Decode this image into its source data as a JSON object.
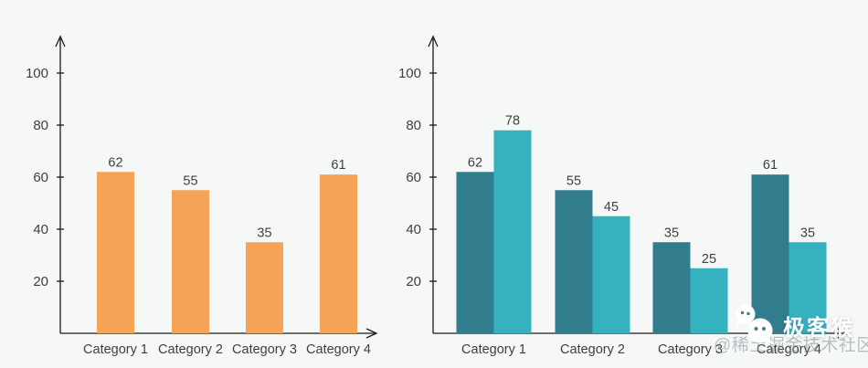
{
  "page": {
    "background_color": "#F6F8F8",
    "axis_color": "#1A1A1A",
    "text_color": "#3F3F3F"
  },
  "chart_data": [
    {
      "type": "bar",
      "title": "",
      "xlabel": "",
      "ylabel": "",
      "categories": [
        "Category 1",
        "Category 2",
        "Category 3",
        "Category 4"
      ],
      "series": [
        {
          "values": [
            62,
            55,
            35,
            61
          ]
        }
      ],
      "colors": [
        "#F5A356"
      ],
      "yticks": [
        20,
        40,
        60,
        80,
        100
      ],
      "ylim": [
        0,
        110
      ],
      "grid": false,
      "legend": false,
      "data_labels": true
    },
    {
      "type": "bar",
      "title": "",
      "xlabel": "",
      "ylabel": "",
      "categories": [
        "Category 1",
        "Category 2",
        "Category 3",
        "Category 4"
      ],
      "series": [
        {
          "values": [
            62,
            55,
            35,
            61
          ]
        },
        {
          "values": [
            78,
            45,
            25,
            35
          ]
        }
      ],
      "colors": [
        "#317C8D",
        "#35B1C0"
      ],
      "yticks": [
        20,
        40,
        60,
        80,
        100
      ],
      "ylim": [
        0,
        110
      ],
      "grid": false,
      "legend": false,
      "data_labels": true
    }
  ],
  "watermark": {
    "icon": "wechat-monkey-icon",
    "label": "极客猴",
    "overlay": "@稀土掘金技术社区"
  }
}
